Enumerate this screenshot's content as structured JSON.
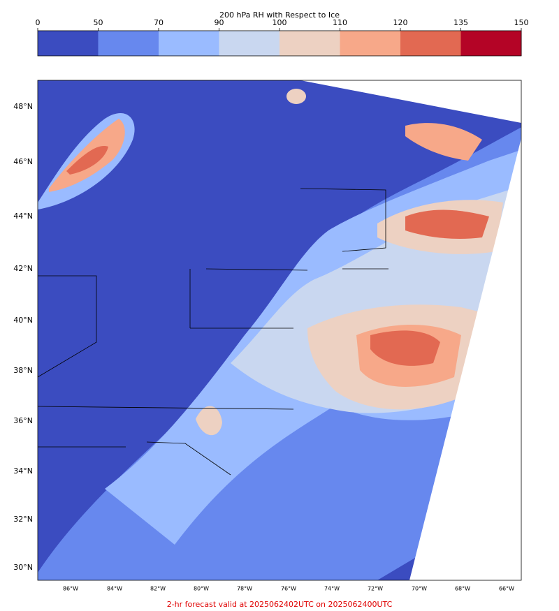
{
  "title": "200 hPa RH with Respect to Ice",
  "colorbar": {
    "ticks": [
      0,
      50,
      70,
      90,
      100,
      110,
      120,
      135,
      150
    ],
    "colors": [
      "#3b4cc0",
      "#6788ee",
      "#9abbff",
      "#c9d7f0",
      "#edd1c2",
      "#f7a889",
      "#e26952",
      "#b40426"
    ]
  },
  "map": {
    "lat_labels": [
      "48°N",
      "46°N",
      "44°N",
      "42°N",
      "40°N",
      "38°N",
      "36°N",
      "34°N",
      "32°N",
      "30°N"
    ],
    "lon_labels": [
      "86°W",
      "84°W",
      "82°W",
      "80°W",
      "78°W",
      "76°W",
      "74°W",
      "72°W",
      "70°W",
      "68°W",
      "66°W"
    ]
  },
  "footer": "2-hr forecast valid at 2025062402UTC on 2025062400UTC"
}
